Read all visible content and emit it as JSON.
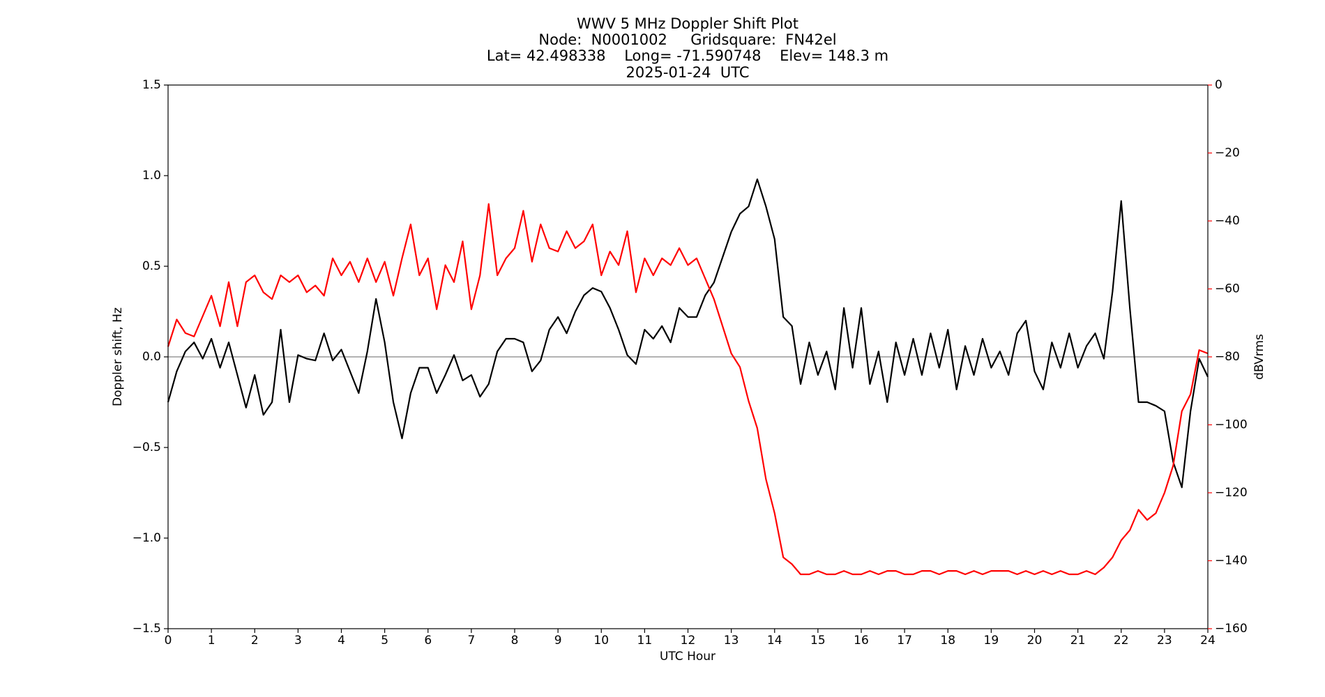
{
  "chart_data": {
    "type": "line",
    "title": [
      "WWV 5 MHz Doppler Shift Plot",
      "Node:  N0001002     Gridsquare:  FN42el",
      "Lat= 42.498338    Long= -71.590748    Elev= 148.3 m",
      "2025-01-24  UTC"
    ],
    "x_label": "UTC Hour",
    "y_label": "Doppler shift, Hz",
    "y2_label": "dBVrms",
    "y2_color": "#ff0000",
    "xlim": [
      0,
      24
    ],
    "xticks": [
      0,
      1,
      2,
      3,
      4,
      5,
      6,
      7,
      8,
      9,
      10,
      11,
      12,
      13,
      14,
      15,
      16,
      17,
      18,
      19,
      20,
      21,
      22,
      23,
      24
    ],
    "ylim": [
      -1.5,
      1.5
    ],
    "yticks": [
      {
        "value": -1.5,
        "label": "−1.5"
      },
      {
        "value": -1.0,
        "label": "−1.0"
      },
      {
        "value": -0.5,
        "label": "−0.5"
      },
      {
        "value": 0,
        "label": "0.0"
      },
      {
        "value": 0.5,
        "label": "0.5"
      },
      {
        "value": 1.0,
        "label": "1.0"
      },
      {
        "value": 1.5,
        "label": "1.5"
      }
    ],
    "y2lim": [
      -160,
      0
    ],
    "y2ticks": [
      {
        "value": -160,
        "label": "−160"
      },
      {
        "value": -140,
        "label": "−140"
      },
      {
        "value": -120,
        "label": "−120"
      },
      {
        "value": -100,
        "label": "−100"
      },
      {
        "value": -80,
        "label": "−80"
      },
      {
        "value": -60,
        "label": "−60"
      },
      {
        "value": -40,
        "label": "−40"
      },
      {
        "value": -20,
        "label": "−20"
      },
      0
    ],
    "hlines": [
      0
    ],
    "hline_color": "#999999",
    "x": [
      0,
      0.2,
      0.4,
      0.6,
      0.8,
      1,
      1.2,
      1.4,
      1.6,
      1.8,
      2,
      2.2,
      2.4,
      2.6,
      2.8,
      3,
      3.2,
      3.4,
      3.6,
      3.8,
      4,
      4.2,
      4.4,
      4.6,
      4.8,
      5,
      5.2,
      5.4,
      5.6,
      5.8,
      6,
      6.2,
      6.4,
      6.6,
      6.8,
      7,
      7.2,
      7.4,
      7.6,
      7.8,
      8,
      8.2,
      8.4,
      8.6,
      8.8,
      9,
      9.2,
      9.4,
      9.6,
      9.8,
      10,
      10.2,
      10.4,
      10.6,
      10.8,
      11,
      11.2,
      11.4,
      11.6,
      11.8,
      12,
      12.2,
      12.4,
      12.6,
      12.8,
      13,
      13.2,
      13.4,
      13.6,
      13.8,
      14,
      14.2,
      14.4,
      14.6,
      14.8,
      15,
      15.2,
      15.4,
      15.6,
      15.8,
      16,
      16.2,
      16.4,
      16.6,
      16.8,
      17,
      17.2,
      17.4,
      17.6,
      17.8,
      18,
      18.2,
      18.4,
      18.6,
      18.8,
      19,
      19.2,
      19.4,
      19.6,
      19.8,
      20,
      20.2,
      20.4,
      20.6,
      20.8,
      21,
      21.2,
      21.4,
      21.6,
      21.8,
      22,
      22.2,
      22.4,
      22.6,
      22.8,
      23,
      23.2,
      23.4,
      23.6,
      23.8,
      24
    ],
    "series": [
      {
        "color": "#000000",
        "values": [
          -0.25,
          -0.08,
          0.03,
          0.08,
          -0.01,
          0.1,
          -0.06,
          0.08,
          -0.1,
          -0.28,
          -0.1,
          -0.32,
          -0.25,
          0.15,
          -0.25,
          0.01,
          -0.01,
          -0.02,
          0.13,
          -0.02,
          0.04,
          -0.08,
          -0.2,
          0.03,
          0.32,
          0.08,
          -0.25,
          -0.45,
          -0.2,
          -0.06,
          -0.06,
          -0.2,
          -0.1,
          0.01,
          -0.13,
          -0.1,
          -0.22,
          -0.15,
          0.03,
          0.1,
          0.1,
          0.08,
          -0.08,
          -0.02,
          0.15,
          0.22,
          0.13,
          0.25,
          0.34,
          0.38,
          0.36,
          0.27,
          0.15,
          0.01,
          -0.04,
          0.15,
          0.1,
          0.17,
          0.08,
          0.27,
          0.22,
          0.22,
          0.34,
          0.41,
          0.55,
          0.69,
          0.79,
          0.83,
          0.98,
          0.83,
          0.65,
          0.22,
          0.17,
          -0.15,
          0.08,
          -0.1,
          0.03,
          -0.18,
          0.27,
          -0.06,
          0.27,
          -0.15,
          0.03,
          -0.25,
          0.08,
          -0.1,
          0.1,
          -0.1,
          0.13,
          -0.06,
          0.15,
          -0.18,
          0.06,
          -0.1,
          0.1,
          -0.06,
          0.03,
          -0.1,
          0.13,
          0.2,
          -0.08,
          -0.18,
          0.08,
          -0.06,
          0.13,
          -0.06,
          0.06,
          0.13,
          -0.01,
          0.36,
          0.86,
          0.27,
          -0.25,
          -0.25,
          -0.27,
          -0.3,
          -0.58,
          -0.72,
          -0.3,
          -0.01,
          -0.11
        ]
      },
      {
        "color": "#ff0000",
        "axis": "y2",
        "values": [
          -77,
          -69,
          -73,
          -74,
          -68,
          -62,
          -71,
          -58,
          -71,
          -58,
          -56,
          -61,
          -63,
          -56,
          -58,
          -56,
          -61,
          -59,
          -62,
          -51,
          -56,
          -52,
          -58,
          -51,
          -58,
          -52,
          -62,
          -51,
          -41,
          -56,
          -51,
          -66,
          -53,
          -58,
          -46,
          -66,
          -56,
          -35,
          -56,
          -51,
          -48,
          -37,
          -52,
          -41,
          -48,
          -49,
          -43,
          -48,
          -46,
          -41,
          -56,
          -49,
          -53,
          -43,
          -61,
          -51,
          -56,
          -51,
          -53,
          -48,
          -53,
          -51,
          -57,
          -63,
          -71,
          -79,
          -83,
          -93,
          -101,
          -116,
          -126,
          -139,
          -141,
          -144,
          -144,
          -143,
          -144,
          -144,
          -143,
          -144,
          -144,
          -143,
          -144,
          -143,
          -143,
          -144,
          -144,
          -143,
          -143,
          -144,
          -143,
          -143,
          -144,
          -143,
          -144,
          -143,
          -143,
          -143,
          -144,
          -143,
          -144,
          -143,
          -144,
          -143,
          -144,
          -144,
          -143,
          -144,
          -142,
          -139,
          -134,
          -131,
          -125,
          -128,
          -126,
          -120,
          -112,
          -96,
          -91,
          -78,
          -79
        ]
      }
    ]
  }
}
